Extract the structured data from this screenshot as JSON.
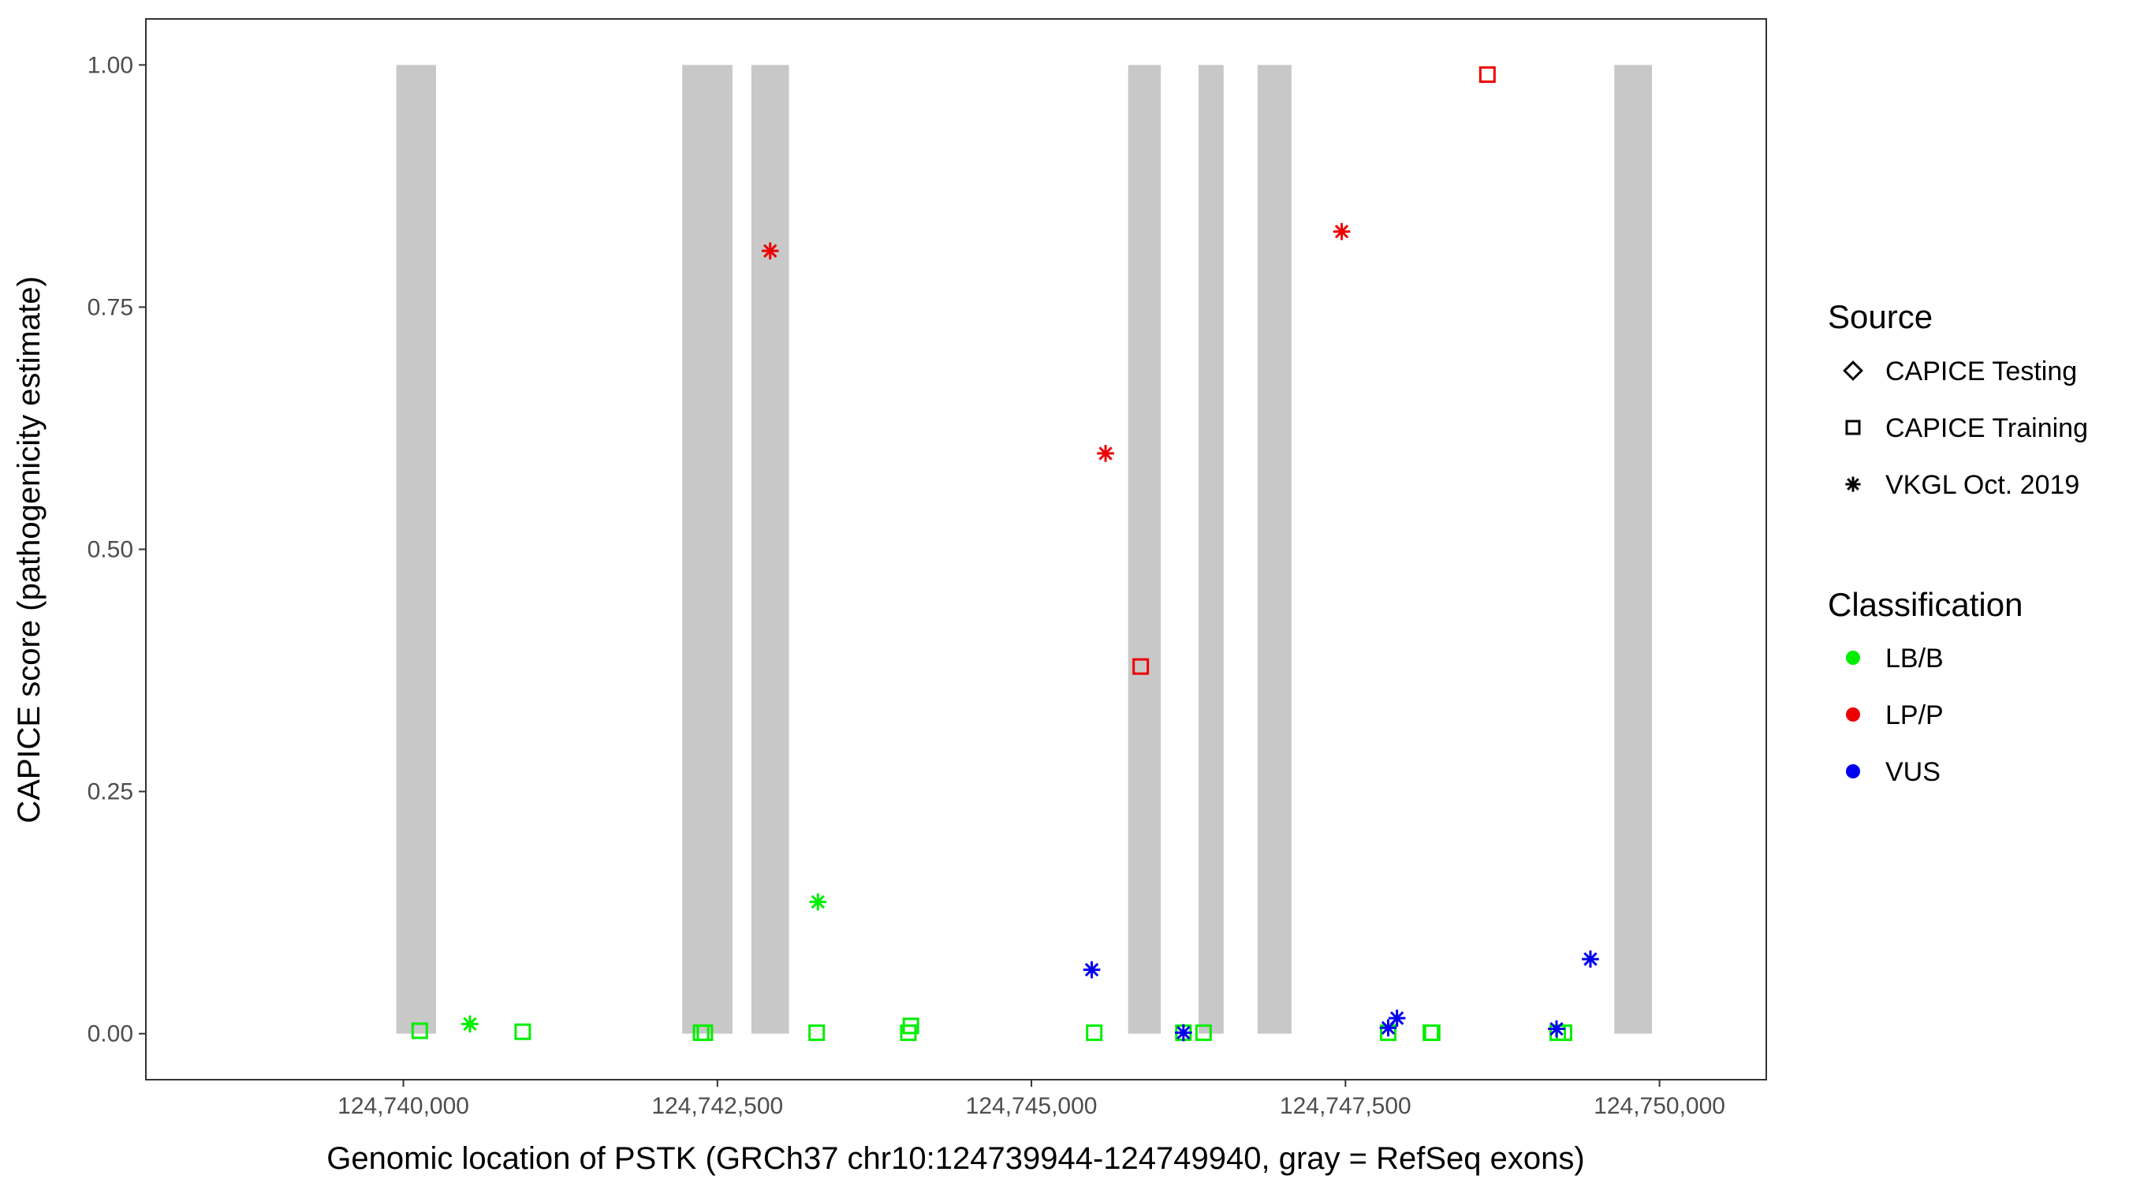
{
  "chart_data": {
    "type": "scatter",
    "xlabel": "Genomic location of PSTK (GRCh37 chr10:124739944-124749940, gray = RefSeq exons)",
    "ylabel": "CAPICE score (pathogenicity estimate)",
    "xlim": [
      124737950,
      124750850
    ],
    "ylim": [
      -0.0475,
      1.0475
    ],
    "x_ticks": [
      124740000,
      124742500,
      124745000,
      124747500,
      124750000
    ],
    "x_tick_labels": [
      "124,740,000",
      "124,742,500",
      "124,745,000",
      "124,747,500",
      "124,750,000"
    ],
    "y_ticks": [
      0,
      0.25,
      0.5,
      0.75,
      1.0
    ],
    "y_tick_labels": [
      "0.00",
      "0.25",
      "0.50",
      "0.75",
      "1.00"
    ],
    "grid": false,
    "panel_border": true,
    "exons": [
      {
        "start": 124739944,
        "end": 124740260,
        "score_min": 0,
        "score_max": 1
      },
      {
        "start": 124742220,
        "end": 124742620,
        "score_min": 0,
        "score_max": 1
      },
      {
        "start": 124742770,
        "end": 124743070,
        "score_min": 0,
        "score_max": 1
      },
      {
        "start": 124745770,
        "end": 124746030,
        "score_min": 0,
        "score_max": 1
      },
      {
        "start": 124746330,
        "end": 124746530,
        "score_min": 0,
        "score_max": 1
      },
      {
        "start": 124746800,
        "end": 124747070,
        "score_min": 0,
        "score_max": 1
      },
      {
        "start": 124749640,
        "end": 124749940,
        "score_min": 0,
        "score_max": 1
      }
    ],
    "shape_legend": {
      "title": "Source",
      "placement": "right",
      "entries": [
        {
          "name": "CAPICE Testing",
          "shape": "diamond"
        },
        {
          "name": "CAPICE Training",
          "shape": "square"
        },
        {
          "name": "VKGL Oct. 2019",
          "shape": "asterisk"
        }
      ]
    },
    "color_legend": {
      "title": "Classification",
      "placement": "right",
      "entries": [
        {
          "name": "LB/B",
          "color": "#00ee00"
        },
        {
          "name": "LP/P",
          "color": "#ee0000"
        },
        {
          "name": "VUS",
          "color": "#0000ee"
        }
      ]
    },
    "points": [
      {
        "x": 124740130,
        "y": 0.003,
        "source": "CAPICE Training",
        "class": "LB/B"
      },
      {
        "x": 124740530,
        "y": 0.01,
        "source": "VKGL Oct. 2019",
        "class": "LB/B"
      },
      {
        "x": 124740950,
        "y": 0.002,
        "source": "CAPICE Training",
        "class": "LB/B"
      },
      {
        "x": 124742370,
        "y": 0.001,
        "source": "CAPICE Training",
        "class": "LB/B"
      },
      {
        "x": 124742400,
        "y": 0.001,
        "source": "CAPICE Training",
        "class": "LB/B"
      },
      {
        "x": 124743290,
        "y": 0.001,
        "source": "CAPICE Training",
        "class": "LB/B"
      },
      {
        "x": 124743300,
        "y": 0.136,
        "source": "VKGL Oct. 2019",
        "class": "LB/B"
      },
      {
        "x": 124744020,
        "y": 0.001,
        "source": "CAPICE Training",
        "class": "LB/B"
      },
      {
        "x": 124744040,
        "y": 0.008,
        "source": "CAPICE Training",
        "class": "LB/B"
      },
      {
        "x": 124745500,
        "y": 0.001,
        "source": "CAPICE Training",
        "class": "LB/B"
      },
      {
        "x": 124746370,
        "y": 0.001,
        "source": "CAPICE Training",
        "class": "LB/B"
      },
      {
        "x": 124747840,
        "y": 0.001,
        "source": "CAPICE Training",
        "class": "LB/B"
      },
      {
        "x": 124748180,
        "y": 0.001,
        "source": "CAPICE Training",
        "class": "LB/B"
      },
      {
        "x": 124748190,
        "y": 0.001,
        "source": "CAPICE Training",
        "class": "LB/B"
      },
      {
        "x": 124749190,
        "y": 0.001,
        "source": "CAPICE Training",
        "class": "LB/B"
      },
      {
        "x": 124749240,
        "y": 0.001,
        "source": "CAPICE Training",
        "class": "LB/B"
      },
      {
        "x": 124746210,
        "y": 0.001,
        "source": "CAPICE Training",
        "class": "LB/B"
      },
      {
        "x": 124742920,
        "y": 0.808,
        "source": "VKGL Oct. 2019",
        "class": "LP/P"
      },
      {
        "x": 124745590,
        "y": 0.599,
        "source": "VKGL Oct. 2019",
        "class": "LP/P"
      },
      {
        "x": 124745870,
        "y": 0.379,
        "source": "CAPICE Training",
        "class": "LP/P"
      },
      {
        "x": 124747470,
        "y": 0.828,
        "source": "VKGL Oct. 2019",
        "class": "LP/P"
      },
      {
        "x": 124748630,
        "y": 0.99,
        "source": "CAPICE Training",
        "class": "LP/P"
      },
      {
        "x": 124745480,
        "y": 0.066,
        "source": "VKGL Oct. 2019",
        "class": "VUS"
      },
      {
        "x": 124746210,
        "y": 0.001,
        "source": "VKGL Oct. 2019",
        "class": "VUS"
      },
      {
        "x": 124747840,
        "y": 0.006,
        "source": "VKGL Oct. 2019",
        "class": "VUS"
      },
      {
        "x": 124747910,
        "y": 0.016,
        "source": "VKGL Oct. 2019",
        "class": "VUS"
      },
      {
        "x": 124749180,
        "y": 0.005,
        "source": "VKGL Oct. 2019",
        "class": "VUS"
      },
      {
        "x": 124749450,
        "y": 0.077,
        "source": "VKGL Oct. 2019",
        "class": "VUS"
      }
    ]
  }
}
